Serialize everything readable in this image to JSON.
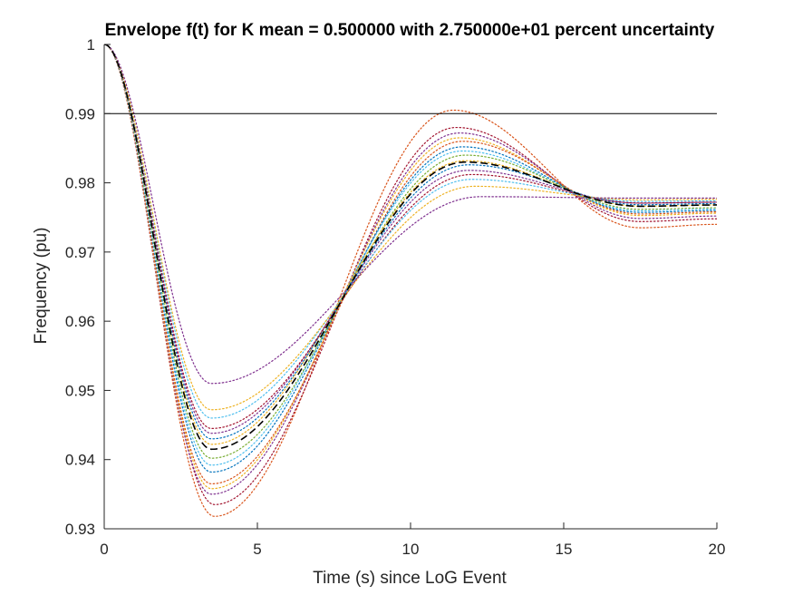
{
  "chart_data": {
    "type": "line",
    "title": "Envelope f(t) for K mean = 0.500000 with 2.750000e+01 percent uncertainty",
    "xlabel": "Time (s) since LoG Event",
    "ylabel": "Frequency (pu)",
    "xlim": [
      0,
      20
    ],
    "ylim": [
      0.93,
      1.0
    ],
    "xticks": [
      0,
      5,
      10,
      15,
      20
    ],
    "yticks": [
      0.93,
      0.94,
      0.95,
      0.96,
      0.97,
      0.98,
      0.99,
      1.0
    ],
    "xtick_labels": [
      "0",
      "5",
      "10",
      "15",
      "20"
    ],
    "ytick_labels": [
      "0.93",
      "0.94",
      "0.95",
      "0.96",
      "0.97",
      "0.98",
      "0.99",
      "1"
    ],
    "grid": false,
    "legend": "none",
    "reference_line": {
      "y": 0.99,
      "color": "#000000"
    },
    "mean_curve": {
      "style": "dashed",
      "color": "#000000",
      "nadir_t": 3.5,
      "nadir_f": 0.9415,
      "peak_t": 11.8,
      "peak_f": 0.983,
      "final_f": 0.9768
    },
    "envelope_curves": [
      {
        "nadir_t": 3.6,
        "nadir_f": 0.9318,
        "peak_t": 11.4,
        "peak_f": 0.9905,
        "final_f": 0.974,
        "color": "#D95319"
      },
      {
        "nadir_t": 3.6,
        "nadir_f": 0.9335,
        "peak_t": 11.5,
        "peak_f": 0.988,
        "final_f": 0.9748,
        "color": "#A2142F"
      },
      {
        "nadir_t": 3.5,
        "nadir_f": 0.935,
        "peak_t": 11.6,
        "peak_f": 0.9872,
        "final_f": 0.9752,
        "color": "#7E2F8E"
      },
      {
        "nadir_t": 3.5,
        "nadir_f": 0.9358,
        "peak_t": 11.6,
        "peak_f": 0.9865,
        "final_f": 0.9756,
        "color": "#EDB120"
      },
      {
        "nadir_t": 3.5,
        "nadir_f": 0.9365,
        "peak_t": 11.7,
        "peak_f": 0.986,
        "final_f": 0.9758,
        "color": "#D95319"
      },
      {
        "nadir_t": 3.5,
        "nadir_f": 0.9382,
        "peak_t": 11.7,
        "peak_f": 0.9852,
        "final_f": 0.976,
        "color": "#0072BD"
      },
      {
        "nadir_t": 3.5,
        "nadir_f": 0.9392,
        "peak_t": 11.7,
        "peak_f": 0.9846,
        "final_f": 0.9762,
        "color": "#4DBEEE"
      },
      {
        "nadir_t": 3.5,
        "nadir_f": 0.9402,
        "peak_t": 11.8,
        "peak_f": 0.984,
        "final_f": 0.9764,
        "color": "#77AC30"
      },
      {
        "nadir_t": 3.5,
        "nadir_f": 0.9422,
        "peak_t": 11.8,
        "peak_f": 0.9832,
        "final_f": 0.9768,
        "color": "#EDB120"
      },
      {
        "nadir_t": 3.5,
        "nadir_f": 0.943,
        "peak_t": 11.9,
        "peak_f": 0.9826,
        "final_f": 0.977,
        "color": "#0072BD"
      },
      {
        "nadir_t": 3.5,
        "nadir_f": 0.9438,
        "peak_t": 11.9,
        "peak_f": 0.9818,
        "final_f": 0.9772,
        "color": "#7E2F8E"
      },
      {
        "nadir_t": 3.5,
        "nadir_f": 0.9445,
        "peak_t": 12.0,
        "peak_f": 0.9812,
        "final_f": 0.9772,
        "color": "#A2142F"
      },
      {
        "nadir_t": 3.5,
        "nadir_f": 0.946,
        "peak_t": 12.0,
        "peak_f": 0.9805,
        "final_f": 0.9774,
        "color": "#4DBEEE"
      },
      {
        "nadir_t": 3.5,
        "nadir_f": 0.9472,
        "peak_t": 12.1,
        "peak_f": 0.9795,
        "final_f": 0.9776,
        "color": "#EDB120"
      },
      {
        "nadir_t": 3.5,
        "nadir_f": 0.951,
        "peak_t": 12.3,
        "peak_f": 0.978,
        "final_f": 0.9778,
        "color": "#7E2F8E"
      }
    ]
  }
}
